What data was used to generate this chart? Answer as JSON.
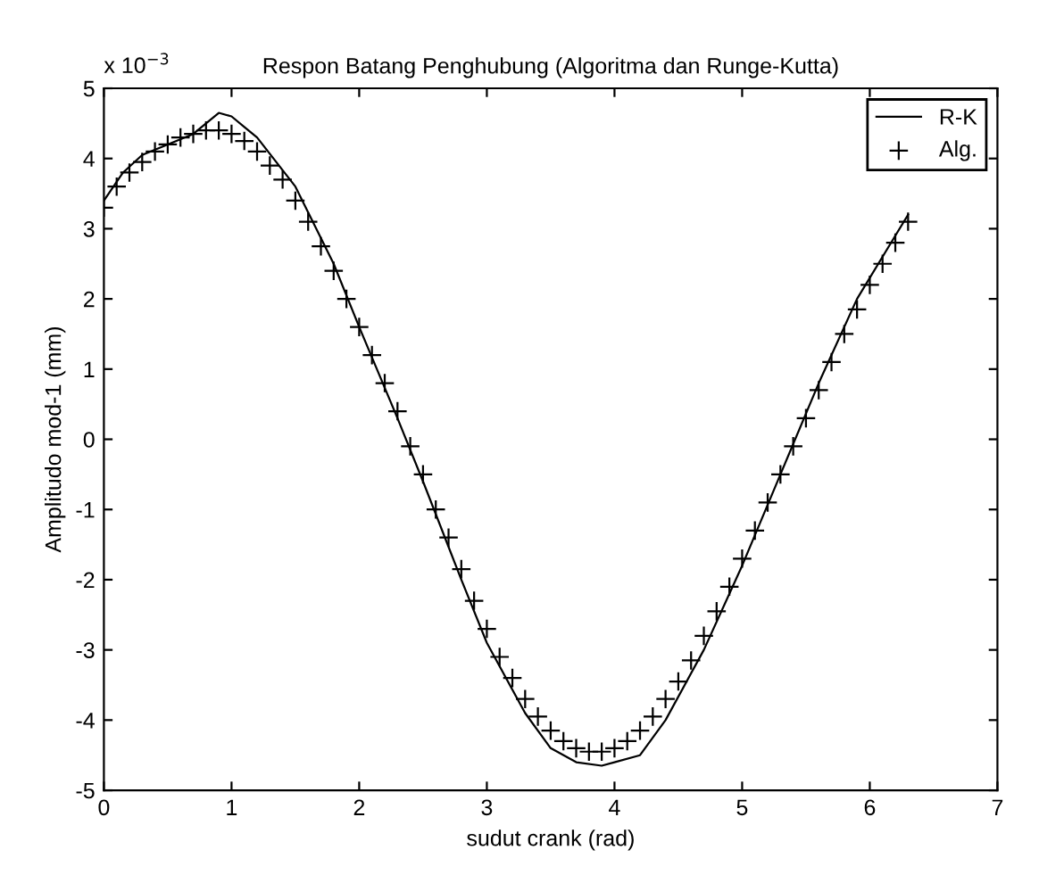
{
  "chart_data": {
    "type": "line",
    "title": "Respon Batang Penghubung (Algoritma dan Runge-Kutta)",
    "xlabel": "sudut crank (rad)",
    "ylabel": "Amplitudo mod-1 (mm)",
    "annotations": [
      "x 10$^{−3}$"
    ],
    "xlim": [
      0,
      7
    ],
    "xticks": [
      0,
      1,
      2,
      3,
      4,
      5,
      6,
      7
    ],
    "ylim": [
      -5,
      5
    ],
    "yticks": [
      -5,
      -4,
      -3,
      -2,
      -1,
      0,
      1,
      2,
      3,
      4,
      5
    ],
    "grid": false,
    "legend": "top right",
    "series": [
      {
        "name": "R-K",
        "color": "#000000",
        "marker": "none",
        "line_style": "solid",
        "x": [
          0,
          0.15,
          0.3,
          0.5,
          0.7,
          0.8,
          0.9,
          1.0,
          1.1,
          1.2,
          1.5,
          1.8,
          2.0,
          2.3,
          2.5,
          2.8,
          3.0,
          3.3,
          3.5,
          3.7,
          3.9,
          4.0,
          4.2,
          4.4,
          4.7,
          5.0,
          5.3,
          5.6,
          5.9,
          6.2,
          6.3
        ],
        "values": [
          3.4,
          3.8,
          4.05,
          4.2,
          4.35,
          4.5,
          4.65,
          4.6,
          4.45,
          4.3,
          3.6,
          2.5,
          1.6,
          0.3,
          -0.6,
          -2.0,
          -2.9,
          -3.9,
          -4.4,
          -4.6,
          -4.65,
          -4.6,
          -4.5,
          -4.0,
          -3.0,
          -1.8,
          -0.5,
          0.8,
          2.0,
          2.9,
          3.2
        ]
      },
      {
        "name": "Alg.",
        "type": "scatter",
        "color": "#000000",
        "marker": "cross",
        "x": [
          0.0,
          0.1,
          0.2,
          0.3,
          0.4,
          0.5,
          0.6,
          0.7,
          0.8,
          0.9,
          1.0,
          1.1,
          1.2,
          1.3,
          1.4,
          1.5,
          1.6,
          1.7,
          1.8,
          1.9,
          2.0,
          2.1,
          2.2,
          2.3,
          2.4,
          2.5,
          2.6,
          2.7,
          2.8,
          2.9,
          3.0,
          3.1,
          3.2,
          3.3,
          3.4,
          3.5,
          3.6,
          3.7,
          3.8,
          3.9,
          4.0,
          4.1,
          4.2,
          4.3,
          4.4,
          4.5,
          4.6,
          4.7,
          4.8,
          4.9,
          5.0,
          5.1,
          5.2,
          5.3,
          5.4,
          5.5,
          5.6,
          5.7,
          5.8,
          5.9,
          6.0,
          6.1,
          6.2,
          6.3
        ],
        "values": [
          3.3,
          3.6,
          3.8,
          3.95,
          4.1,
          4.2,
          4.3,
          4.35,
          4.4,
          4.4,
          4.35,
          4.25,
          4.1,
          3.9,
          3.7,
          3.4,
          3.1,
          2.75,
          2.4,
          2.0,
          1.6,
          1.2,
          0.8,
          0.4,
          -0.1,
          -0.5,
          -1.0,
          -1.4,
          -1.85,
          -2.3,
          -2.7,
          -3.1,
          -3.4,
          -3.7,
          -3.95,
          -4.15,
          -4.3,
          -4.4,
          -4.45,
          -4.45,
          -4.4,
          -4.3,
          -4.15,
          -3.95,
          -3.7,
          -3.45,
          -3.15,
          -2.8,
          -2.45,
          -2.1,
          -1.7,
          -1.3,
          -0.9,
          -0.5,
          -0.1,
          0.3,
          0.7,
          1.1,
          1.5,
          1.85,
          2.2,
          2.5,
          2.8,
          3.1
        ]
      }
    ]
  }
}
